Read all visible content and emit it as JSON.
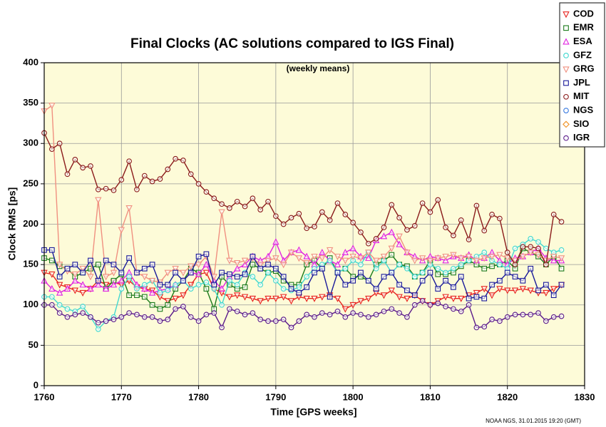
{
  "chart_data": {
    "type": "line",
    "title": "Final Clocks (AC solutions compared to IGS Final)",
    "subtitle": "(weekly means)",
    "x_label": "Time [GPS weeks]",
    "y_label": "Clock RMS [ps]",
    "footnote": "NOAA NGS, 31.01.2015 19:20 (GMT)",
    "xlim": [
      1760,
      1830
    ],
    "xticks": [
      1760,
      1770,
      1780,
      1790,
      1800,
      1810,
      1820,
      1830
    ],
    "ylim": [
      0,
      400
    ],
    "yticks": [
      0,
      50,
      100,
      150,
      200,
      250,
      300,
      350,
      400
    ],
    "grid": true,
    "legend": "upper right",
    "x": [
      1760,
      1761,
      1762,
      1763,
      1764,
      1765,
      1766,
      1767,
      1768,
      1769,
      1770,
      1771,
      1772,
      1773,
      1774,
      1775,
      1776,
      1777,
      1778,
      1779,
      1780,
      1781,
      1782,
      1783,
      1784,
      1785,
      1786,
      1787,
      1788,
      1789,
      1790,
      1791,
      1792,
      1793,
      1794,
      1795,
      1796,
      1797,
      1798,
      1799,
      1800,
      1801,
      1802,
      1803,
      1804,
      1805,
      1806,
      1807,
      1808,
      1809,
      1810,
      1811,
      1812,
      1813,
      1814,
      1815,
      1816,
      1817,
      1818,
      1819,
      1820,
      1821,
      1822,
      1823,
      1824,
      1825,
      1826,
      1827
    ],
    "series": [
      {
        "name": "COD",
        "color": "#e8231e",
        "marker": "triangle-down",
        "values": [
          140,
          138,
          125,
          122,
          118,
          115,
          120,
          130,
          125,
          128,
          125,
          130,
          122,
          120,
          118,
          110,
          105,
          108,
          112,
          125,
          138,
          140,
          120,
          115,
          110,
          112,
          110,
          108,
          105,
          108,
          108,
          110,
          105,
          110,
          108,
          108,
          110,
          112,
          108,
          95,
          100,
          105,
          108,
          115,
          112,
          118,
          110,
          108,
          112,
          105,
          100,
          105,
          110,
          108,
          108,
          112,
          115,
          120,
          112,
          120,
          118,
          118,
          120,
          118,
          115,
          115,
          120,
          125
        ]
      },
      {
        "name": "EMR",
        "color": "#1a7a1a",
        "marker": "square",
        "values": [
          158,
          155,
          148,
          145,
          135,
          140,
          145,
          150,
          120,
          130,
          138,
          112,
          112,
          110,
          100,
          95,
          100,
          120,
          130,
          145,
          140,
          120,
          95,
          135,
          125,
          120,
          122,
          150,
          145,
          140,
          142,
          130,
          125,
          125,
          150,
          155,
          145,
          158,
          140,
          145,
          135,
          135,
          130,
          150,
          155,
          162,
          150,
          148,
          135,
          140,
          155,
          138,
          138,
          140,
          148,
          155,
          150,
          145,
          148,
          150,
          155,
          145,
          170,
          165,
          160,
          150,
          160,
          145
        ]
      },
      {
        "name": "ESA",
        "color": "#e020e0",
        "marker": "triangle-up",
        "values": [
          130,
          120,
          115,
          120,
          130,
          125,
          120,
          125,
          120,
          125,
          130,
          140,
          125,
          120,
          115,
          118,
          120,
          125,
          130,
          140,
          138,
          150,
          130,
          120,
          135,
          145,
          150,
          160,
          155,
          160,
          178,
          155,
          165,
          168,
          160,
          150,
          165,
          155,
          150,
          165,
          170,
          160,
          158,
          180,
          185,
          190,
          175,
          165,
          160,
          155,
          160,
          158,
          155,
          160,
          158,
          162,
          155,
          158,
          165,
          155,
          150,
          158,
          160,
          165,
          170,
          158,
          155,
          155
        ]
      },
      {
        "name": "GFZ",
        "color": "#40d8d0",
        "marker": "circle",
        "values": [
          110,
          110,
          100,
          95,
          92,
          98,
          85,
          70,
          80,
          85,
          120,
          135,
          120,
          125,
          130,
          115,
          118,
          125,
          130,
          120,
          125,
          128,
          120,
          100,
          130,
          125,
          140,
          135,
          125,
          140,
          130,
          120,
          118,
          122,
          135,
          145,
          150,
          155,
          140,
          145,
          155,
          150,
          165,
          145,
          155,
          140,
          150,
          145,
          135,
          140,
          150,
          145,
          140,
          145,
          150,
          155,
          160,
          165,
          155,
          150,
          145,
          170,
          175,
          182,
          178,
          170,
          165,
          168
        ]
      },
      {
        "name": "GRG",
        "color": "#f09080",
        "marker": "triangle-down",
        "values": [
          340,
          347,
          150,
          142,
          138,
          145,
          135,
          230,
          135,
          140,
          193,
          220,
          140,
          135,
          130,
          128,
          140,
          145,
          140,
          148,
          150,
          160,
          135,
          215,
          155,
          152,
          155,
          158,
          150,
          155,
          158,
          150,
          165,
          158,
          152,
          160,
          158,
          168,
          160,
          155,
          160,
          158,
          165,
          155,
          160,
          170,
          185,
          165,
          155,
          158,
          155,
          158,
          160,
          162,
          158,
          160,
          155,
          158,
          160,
          162,
          158,
          155,
          160,
          165,
          162,
          155,
          160,
          158
        ]
      },
      {
        "name": "JPL",
        "color": "#1a1a9a",
        "marker": "square",
        "values": [
          168,
          168,
          135,
          145,
          150,
          140,
          155,
          130,
          155,
          150,
          140,
          158,
          140,
          145,
          150,
          125,
          125,
          140,
          130,
          140,
          160,
          163,
          125,
          140,
          138,
          135,
          138,
          160,
          145,
          150,
          145,
          135,
          120,
          115,
          122,
          140,
          145,
          110,
          140,
          125,
          130,
          140,
          130,
          120,
          135,
          140,
          125,
          118,
          112,
          130,
          140,
          120,
          130,
          122,
          135,
          108,
          110,
          108,
          125,
          130,
          140,
          135,
          130,
          145,
          118,
          125,
          112,
          125
        ]
      },
      {
        "name": "MIT",
        "color": "#8a1a1a",
        "marker": "circle",
        "values": [
          313,
          293,
          300,
          262,
          280,
          270,
          272,
          243,
          244,
          242,
          255,
          278,
          243,
          260,
          253,
          256,
          268,
          281,
          279,
          262,
          250,
          240,
          232,
          225,
          220,
          228,
          222,
          232,
          218,
          228,
          210,
          200,
          208,
          213,
          195,
          197,
          215,
          205,
          226,
          212,
          202,
          190,
          176,
          182,
          196,
          224,
          208,
          193,
          198,
          226,
          215,
          230,
          196,
          186,
          205,
          181,
          223,
          192,
          212,
          207,
          165,
          150,
          172,
          172,
          170,
          150,
          212,
          203
        ]
      },
      {
        "name": "NGS",
        "color": "#3a7ae0",
        "marker": "circle",
        "values": [
          null,
          null,
          null,
          null,
          null,
          null,
          null,
          null,
          null,
          null,
          null,
          null,
          null,
          null,
          null,
          null,
          null,
          null,
          null,
          null,
          null,
          null,
          null,
          null,
          null,
          null,
          null,
          null,
          null,
          null,
          null,
          null,
          null,
          null,
          null,
          null,
          null,
          null,
          null,
          null,
          null,
          null,
          null,
          null,
          null,
          null,
          null,
          null,
          null,
          null,
          null,
          null,
          null,
          null,
          null,
          null,
          null,
          null,
          null,
          null,
          null,
          null,
          null,
          null,
          null,
          null,
          null,
          null
        ]
      },
      {
        "name": "SIO",
        "color": "#f09020",
        "marker": "diamond",
        "values": [
          null,
          null,
          null,
          null,
          null,
          null,
          null,
          null,
          null,
          null,
          null,
          null,
          null,
          null,
          null,
          null,
          null,
          null,
          null,
          null,
          null,
          null,
          null,
          null,
          null,
          null,
          null,
          null,
          null,
          null,
          null,
          null,
          null,
          null,
          null,
          null,
          null,
          null,
          null,
          null,
          null,
          null,
          null,
          null,
          null,
          null,
          null,
          null,
          null,
          null,
          null,
          null,
          null,
          null,
          null,
          null,
          null,
          null,
          null,
          null,
          null,
          null,
          null,
          null,
          null,
          null,
          null,
          null
        ]
      },
      {
        "name": "IGR",
        "color": "#5a1a8a",
        "marker": "circle",
        "values": [
          100,
          100,
          90,
          85,
          88,
          90,
          85,
          78,
          80,
          82,
          85,
          90,
          88,
          85,
          85,
          80,
          82,
          95,
          98,
          85,
          80,
          88,
          90,
          72,
          95,
          92,
          88,
          90,
          82,
          80,
          80,
          82,
          72,
          80,
          88,
          85,
          90,
          88,
          92,
          85,
          90,
          88,
          85,
          88,
          92,
          95,
          90,
          85,
          100,
          105,
          100,
          102,
          98,
          95,
          92,
          100,
          72,
          73,
          82,
          80,
          85,
          88,
          88,
          88,
          90,
          80,
          85,
          86
        ]
      }
    ]
  }
}
